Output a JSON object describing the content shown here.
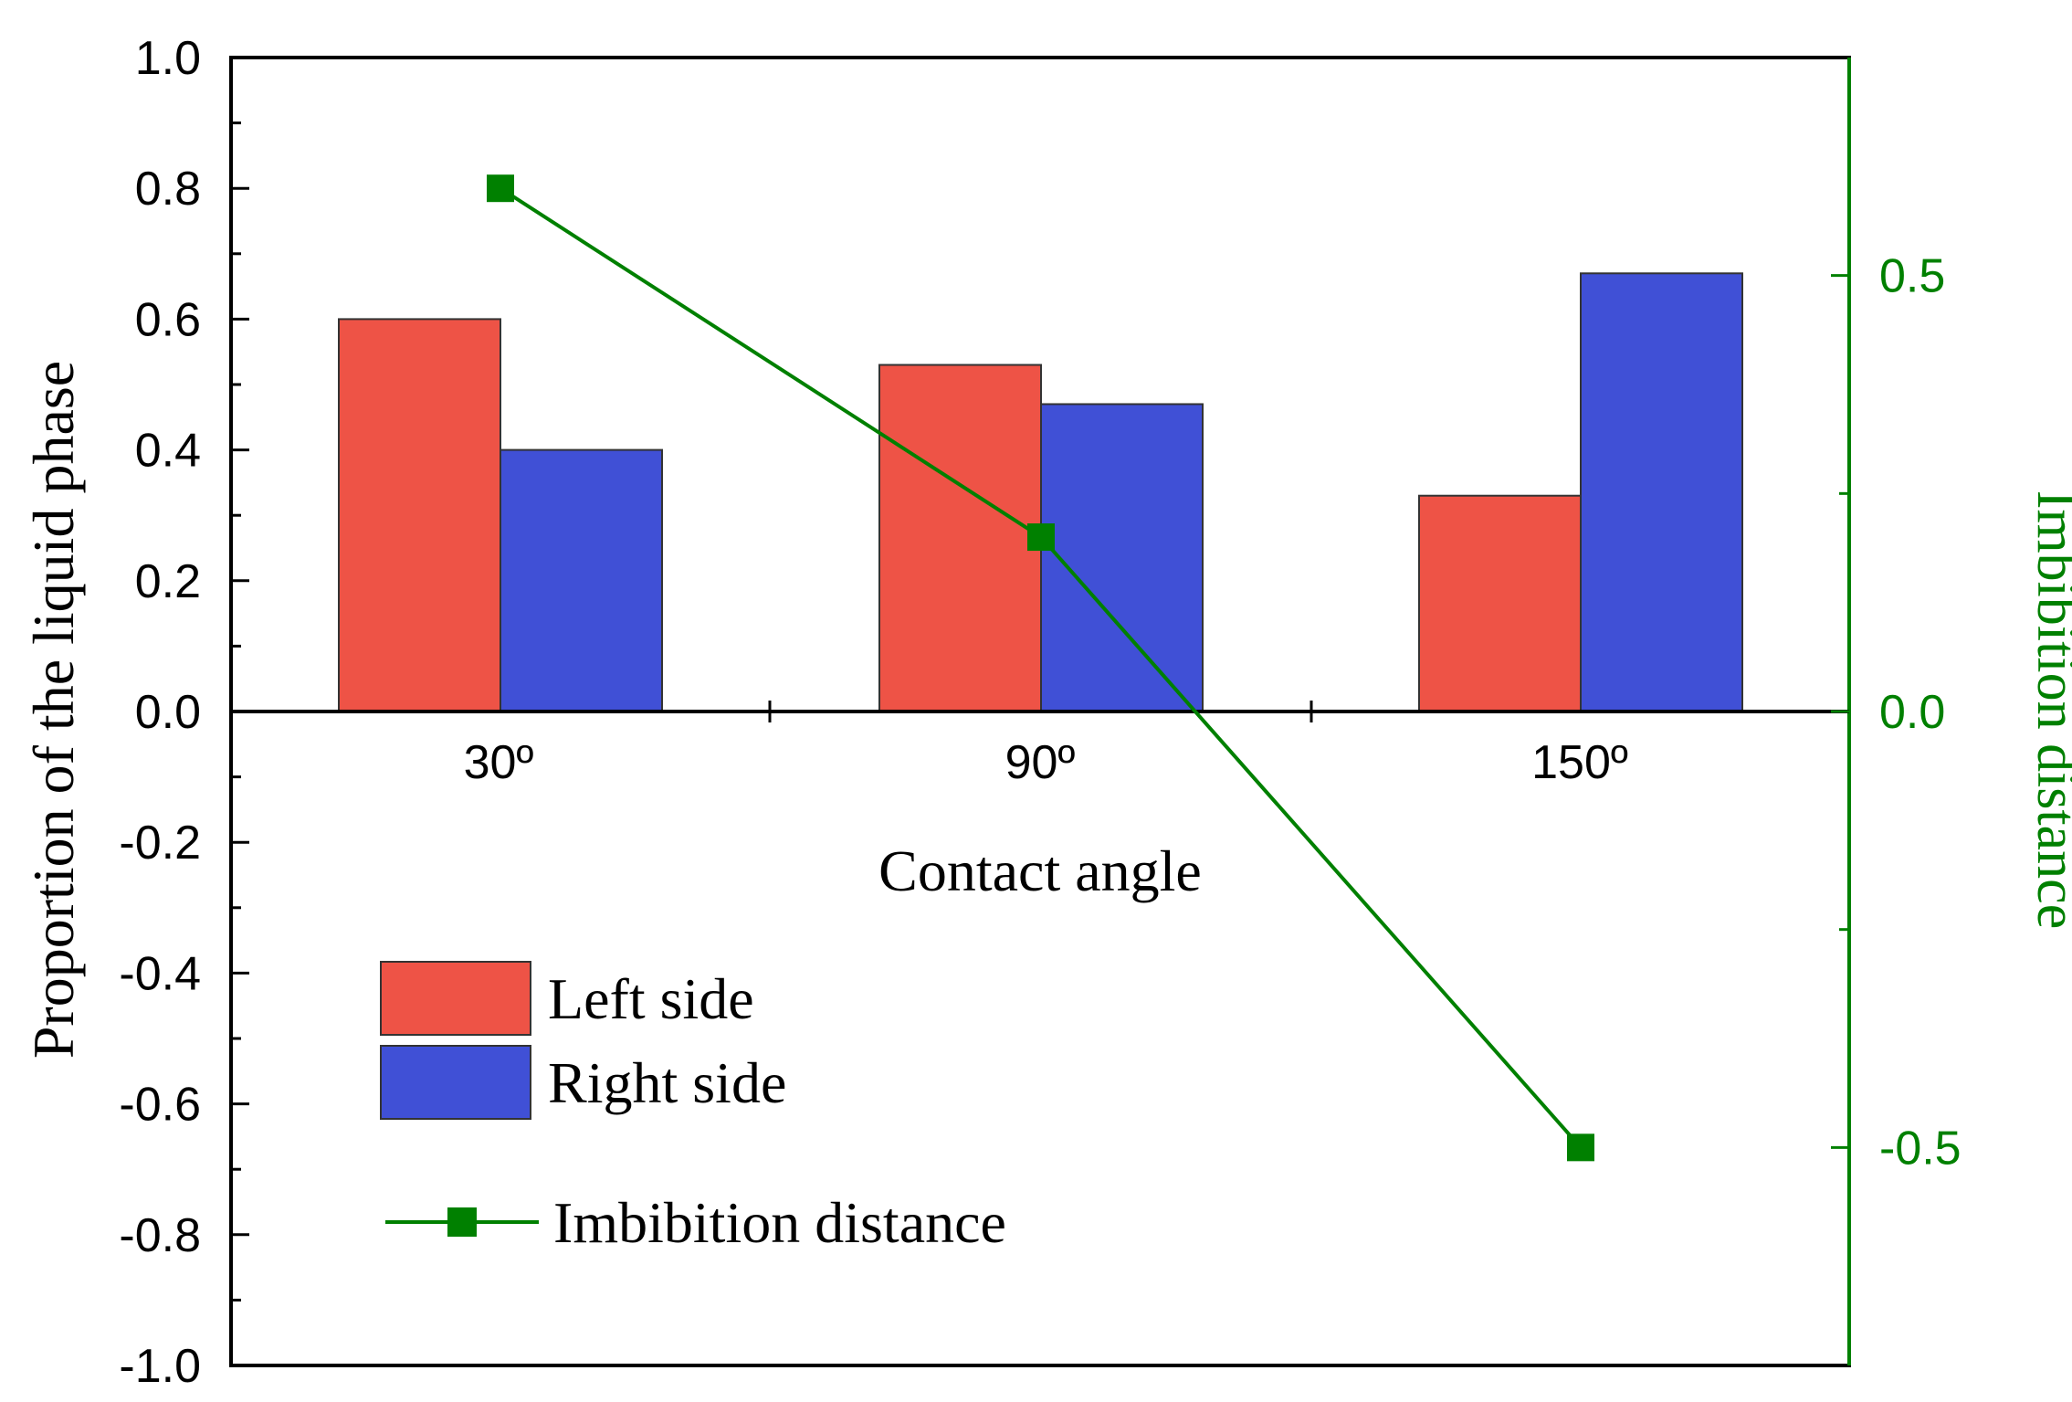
{
  "chart_data": {
    "type": "bar",
    "categories": [
      "30º",
      "90º",
      "150º"
    ],
    "xlabel": "Contact angle",
    "ylabel": "Proportion of the liquid phase",
    "ylim": [
      -1.0,
      1.0
    ],
    "yticks": [
      "1.0",
      "0.8",
      "0.6",
      "0.4",
      "0.2",
      "0.0",
      "-0.2",
      "-0.4",
      "-0.6",
      "-0.8",
      "-1.0"
    ],
    "series": [
      {
        "name": "Left side",
        "axis": "left",
        "kind": "bar",
        "color": "#ee5346",
        "values": [
          0.6,
          0.53,
          0.33
        ]
      },
      {
        "name": "Right side",
        "axis": "left",
        "kind": "bar",
        "color": "#4050d6",
        "values": [
          0.4,
          0.47,
          0.67
        ]
      },
      {
        "name": "Imbibition distance",
        "axis": "right",
        "kind": "line",
        "marker": "square",
        "color": "#008000",
        "values": [
          0.6,
          0.2,
          -0.5
        ]
      }
    ],
    "y2label": "Imbibition distance",
    "y2lim": [
      -0.75,
      0.75
    ],
    "y2ticks": [
      "0.5",
      "0.0",
      "-0.5"
    ],
    "legend_position": "lower-left"
  }
}
